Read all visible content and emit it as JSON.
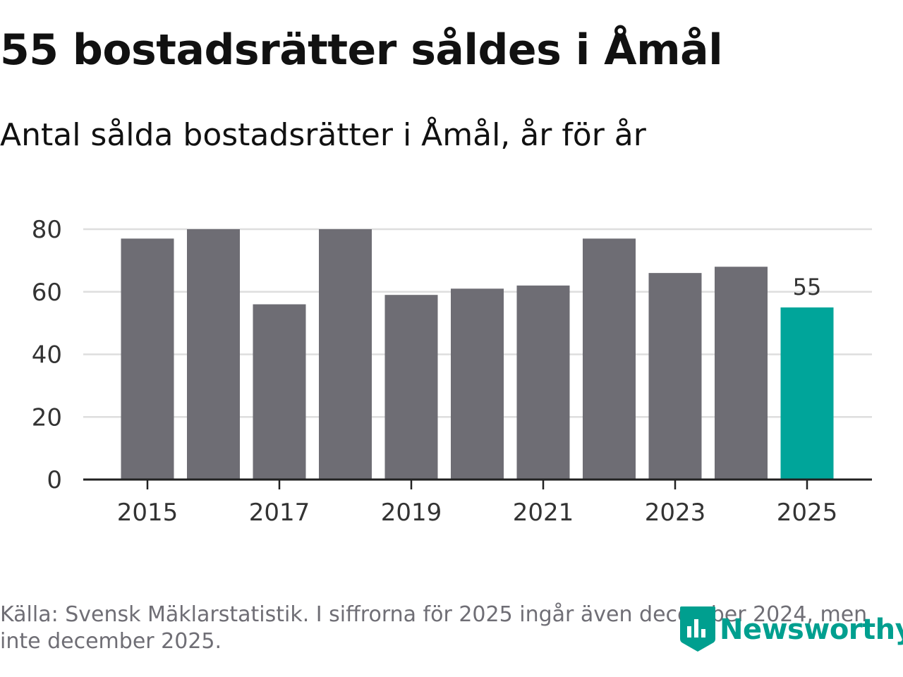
{
  "title": "55 bostadsrätter såldes i Åmål",
  "subtitle": "Antal sålda bostadsrätter i Åmål, år för år",
  "source": "Källa: Svensk Mäklarstatistik. I siffrorna för 2025 ingår även december 2024, men inte december 2025.",
  "logo": {
    "text": "Newsworthy",
    "icon": "newsworthy-chart-badge-icon"
  },
  "colors": {
    "bar": "#6e6d74",
    "highlight": "#00a59a",
    "grid": "#dedede",
    "axis": "#222222",
    "text": "#333333"
  },
  "chart_data": {
    "type": "bar",
    "title": "55 bostadsrätter såldes i Åmål",
    "subtitle": "Antal sålda bostadsrätter i Åmål, år för år",
    "xlabel": "",
    "ylabel": "",
    "categories": [
      "2015",
      "2016",
      "2017",
      "2018",
      "2019",
      "2020",
      "2021",
      "2022",
      "2023",
      "2024",
      "2025"
    ],
    "values": [
      77,
      80,
      56,
      80,
      59,
      61,
      62,
      77,
      66,
      68,
      55
    ],
    "highlight_index": 10,
    "data_labels": [
      {
        "index": 10,
        "text": "55"
      }
    ],
    "x_tick_labels": [
      "2015",
      "2017",
      "2019",
      "2021",
      "2023",
      "2025"
    ],
    "y_ticks": [
      0,
      20,
      40,
      60,
      80
    ],
    "ylim": [
      0,
      80
    ],
    "grid": true,
    "legend": "none"
  }
}
